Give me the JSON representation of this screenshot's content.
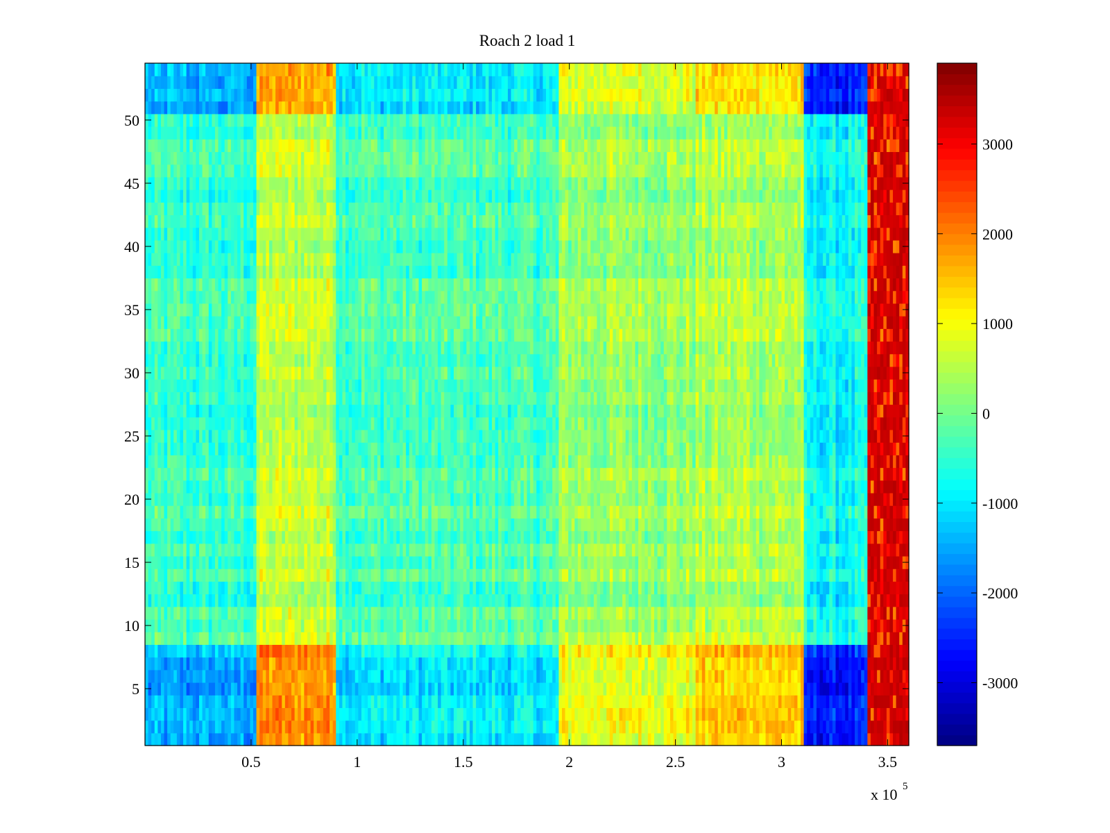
{
  "chart_data": {
    "type": "heatmap",
    "title": "Roach 2 load 1",
    "xlabel": "",
    "ylabel": "",
    "x_multiplier_label": "x 10",
    "x_multiplier_exponent": "5",
    "xlim": [
      0,
      360000
    ],
    "ylim": [
      0.5,
      54.5
    ],
    "rows": 54,
    "x_ticks": [
      {
        "value": 50000,
        "label": "0.5"
      },
      {
        "value": 100000,
        "label": "1"
      },
      {
        "value": 150000,
        "label": "1.5"
      },
      {
        "value": 200000,
        "label": "2"
      },
      {
        "value": 250000,
        "label": "2.5"
      },
      {
        "value": 300000,
        "label": "3"
      },
      {
        "value": 350000,
        "label": "3.5"
      }
    ],
    "y_ticks": [
      {
        "value": 5,
        "label": "5"
      },
      {
        "value": 10,
        "label": "10"
      },
      {
        "value": 15,
        "label": "15"
      },
      {
        "value": 20,
        "label": "20"
      },
      {
        "value": 25,
        "label": "25"
      },
      {
        "value": 30,
        "label": "30"
      },
      {
        "value": 35,
        "label": "35"
      },
      {
        "value": 40,
        "label": "40"
      },
      {
        "value": 45,
        "label": "45"
      },
      {
        "value": 50,
        "label": "50"
      }
    ],
    "colorbar": {
      "colormap": "jet",
      "clim": [
        -3700,
        3900
      ],
      "ticks": [
        {
          "value": 3000,
          "label": "3000"
        },
        {
          "value": 2000,
          "label": "2000"
        },
        {
          "value": 1000,
          "label": "1000"
        },
        {
          "value": 0,
          "label": "0"
        },
        {
          "value": -1000,
          "label": "-1000"
        },
        {
          "value": -2000,
          "label": "-2000"
        },
        {
          "value": -3000,
          "label": "-3000"
        }
      ]
    },
    "column_profile": [
      {
        "x_start": 0,
        "x_end": 52000,
        "base": -900
      },
      {
        "x_start": 52000,
        "x_end": 90000,
        "base": 1200
      },
      {
        "x_start": 90000,
        "x_end": 195000,
        "base": -600
      },
      {
        "x_start": 195000,
        "x_end": 260000,
        "base": 600
      },
      {
        "x_start": 260000,
        "x_end": 310000,
        "base": 900
      },
      {
        "x_start": 310000,
        "x_end": 340000,
        "base": -1600
      },
      {
        "x_start": 340000,
        "x_end": 360000,
        "base": 3500
      }
    ],
    "row_profile": [
      {
        "y_start": 0.5,
        "y_end": 8.5,
        "amplitude": 1.6
      },
      {
        "y_start": 8.5,
        "y_end": 50.5,
        "amplitude": 0.5
      },
      {
        "y_start": 50.5,
        "y_end": 54.5,
        "amplitude": 1.5
      }
    ]
  }
}
